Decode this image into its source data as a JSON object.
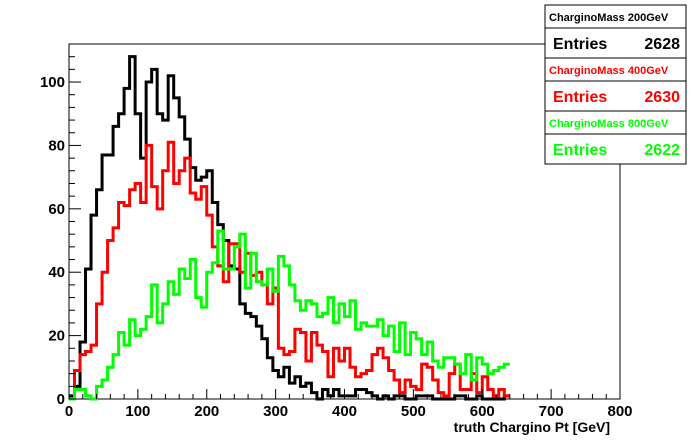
{
  "chart_data": {
    "type": "histogram",
    "title": "",
    "xlabel": "truth Chargino Pt [GeV]",
    "ylabel": "",
    "xlim": [
      0,
      800
    ],
    "ylim": [
      0,
      112
    ],
    "x_ticks": [
      0,
      100,
      200,
      300,
      400,
      500,
      600,
      700,
      800
    ],
    "y_ticks": [
      0,
      20,
      40,
      60,
      80,
      100
    ],
    "bin_width": 8,
    "grid": false,
    "legend_position": "top-right",
    "series": [
      {
        "name": "CharginoMass 200GeV",
        "color": "#000000",
        "entries_label": "Entries",
        "entries": "2628",
        "values": [
          1,
          4,
          18,
          41,
          58,
          66,
          77,
          77,
          86,
          90,
          98,
          108,
          90,
          76,
          100,
          104,
          90,
          88,
          102,
          95,
          89,
          82,
          73,
          69,
          70,
          72,
          62,
          55,
          50,
          42,
          41,
          30,
          27,
          26,
          23,
          19,
          13,
          9,
          7,
          10,
          5,
          7,
          4,
          5,
          2,
          0,
          3,
          1,
          3,
          1,
          1,
          1,
          3,
          3,
          2,
          1,
          0,
          1,
          0,
          1,
          1,
          0,
          0,
          1,
          1,
          1,
          0,
          0,
          0,
          0,
          1,
          1,
          0,
          0,
          1,
          0,
          0,
          0,
          0,
          1
        ]
      },
      {
        "name": "CharginoMass 400GeV",
        "color": "#ff0000",
        "entries_label": "Entries",
        "entries": "2630",
        "values": [
          0,
          9,
          14,
          15,
          17,
          30,
          40,
          50,
          54,
          62,
          61,
          66,
          68,
          62,
          80,
          67,
          60,
          72,
          81,
          68,
          72,
          76,
          65,
          63,
          67,
          58,
          48,
          42,
          37,
          49,
          49,
          40,
          46,
          39,
          40,
          36,
          30,
          35,
          16,
          14,
          15,
          22,
          21,
          12,
          21,
          17,
          15,
          7,
          16,
          12,
          16,
          10,
          7,
          8,
          9,
          14,
          16,
          13,
          9,
          6,
          2,
          6,
          4,
          3,
          11,
          10,
          6,
          2,
          1,
          8,
          11,
          3,
          3,
          8,
          2,
          7,
          3,
          1,
          3,
          1
        ]
      },
      {
        "name": "CharginoMass 800GeV",
        "color": "#00ff00",
        "entries_label": "Entries",
        "entries": "2622",
        "values": [
          0,
          3,
          3,
          1,
          0,
          4,
          6,
          10,
          14,
          21,
          17,
          25,
          20,
          22,
          26,
          36,
          24,
          30,
          37,
          33,
          41,
          38,
          44,
          32,
          29,
          40,
          43,
          53,
          41,
          41,
          48,
          52,
          35,
          46,
          37,
          36,
          41,
          34,
          45,
          42,
          36,
          31,
          28,
          31,
          30,
          26,
          27,
          32,
          24,
          30,
          26,
          31,
          22,
          24,
          23,
          23,
          25,
          20,
          23,
          15,
          24,
          14,
          21,
          19,
          14,
          18,
          12,
          10,
          13,
          13,
          11,
          8,
          14,
          6,
          13,
          11,
          8,
          9,
          10,
          11
        ]
      }
    ]
  }
}
